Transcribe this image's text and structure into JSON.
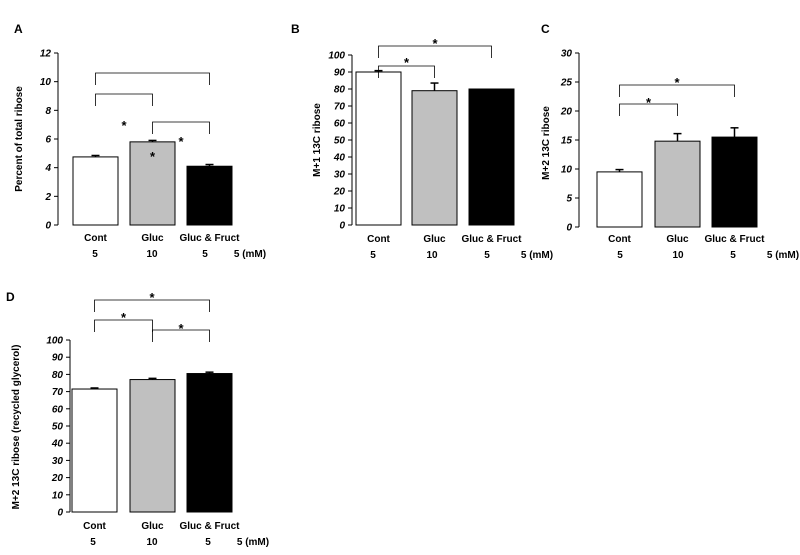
{
  "chart_data": [
    {
      "type": "bar",
      "panel": "A",
      "ylabel": "Percent of total ribose",
      "yticks": [
        "0",
        "2",
        "4",
        "6",
        "8",
        "10",
        "12"
      ],
      "ylim": [
        0,
        12
      ],
      "categories": [
        "Cont",
        "Gluc",
        "Gluc & Fruct"
      ],
      "concentrations": [
        "5",
        "10",
        "5",
        "5 (mM)"
      ],
      "values": [
        4.75,
        5.8,
        4.1
      ],
      "errors": [
        0.1,
        0.1,
        0.12
      ],
      "colors": [
        "#ffffff",
        "#c0c0c0",
        "#000000"
      ],
      "significance": [
        {
          "from": 0,
          "to": 2,
          "label": "*"
        },
        {
          "from": 0,
          "to": 1,
          "label": "*"
        },
        {
          "from": 1,
          "to": 2,
          "label": "*"
        }
      ]
    },
    {
      "type": "bar",
      "panel": "B",
      "ylabel": "M+1 13C ribose",
      "yticks": [
        "0",
        "10",
        "20",
        "30",
        "40",
        "50",
        "60",
        "70",
        "80",
        "90",
        "100"
      ],
      "ylim": [
        0,
        100
      ],
      "categories": [
        "Cont",
        "Gluc",
        "Gluc & Fruct"
      ],
      "concentrations": [
        "5",
        "10",
        "5",
        "5 (mM)"
      ],
      "values": [
        90,
        79,
        80
      ],
      "errors": [
        0.8,
        4.5,
        0
      ],
      "colors": [
        "#ffffff",
        "#c0c0c0",
        "#000000"
      ],
      "significance": [
        {
          "from": 0,
          "to": 2,
          "label": "*"
        },
        {
          "from": 0,
          "to": 1,
          "label": "*"
        }
      ]
    },
    {
      "type": "bar",
      "panel": "C",
      "ylabel": "M+2 13C ribose",
      "yticks": [
        "0",
        "5",
        "10",
        "15",
        "20",
        "25",
        "30"
      ],
      "ylim": [
        0,
        30
      ],
      "categories": [
        "Cont",
        "Gluc",
        "Gluc & Fruct"
      ],
      "concentrations": [
        "5",
        "10",
        "5",
        "5 (mM)"
      ],
      "values": [
        9.5,
        14.8,
        15.5
      ],
      "errors": [
        0.4,
        1.3,
        1.6
      ],
      "colors": [
        "#ffffff",
        "#c0c0c0",
        "#000000"
      ],
      "significance": [
        {
          "from": 0,
          "to": 2,
          "label": "*"
        },
        {
          "from": 0,
          "to": 1,
          "label": "*"
        }
      ]
    },
    {
      "type": "bar",
      "panel": "D",
      "ylabel": "M+2 13C ribose (recycled glycerol)",
      "yticks": [
        "0",
        "10",
        "20",
        "30",
        "40",
        "50",
        "60",
        "70",
        "80",
        "90",
        "100"
      ],
      "ylim": [
        0,
        100
      ],
      "categories": [
        "Cont",
        "Gluc",
        "Gluc & Fruct"
      ],
      "concentrations": [
        "5",
        "10",
        "5",
        "5 (mM)"
      ],
      "values": [
        71.5,
        77,
        80.5
      ],
      "errors": [
        0.6,
        0.7,
        0.8
      ],
      "colors": [
        "#ffffff",
        "#c0c0c0",
        "#000000"
      ],
      "significance": [
        {
          "from": 0,
          "to": 2,
          "label": "*"
        },
        {
          "from": 0,
          "to": 1,
          "label": "*"
        },
        {
          "from": 1,
          "to": 2,
          "label": "*"
        }
      ]
    }
  ]
}
